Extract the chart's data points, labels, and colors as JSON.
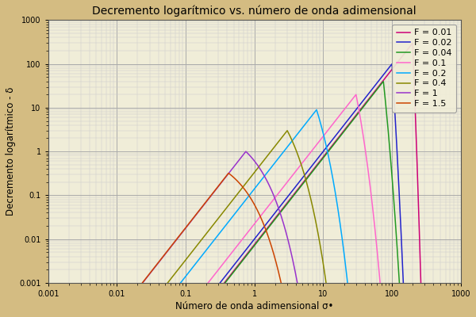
{
  "title": "Decremento logarítmico vs. número de onda adimensional",
  "xlabel": "Número de onda adimensional σ•",
  "ylabel": "Decremento logarítmico - δ",
  "xlim": [
    0.001,
    1000
  ],
  "ylim": [
    0.001,
    1000
  ],
  "background_outer": "#d4bc82",
  "background_inner": "#f0edd8",
  "grid_major_color": "#aaaaaa",
  "grid_minor_color": "#cccccc",
  "froude_numbers": [
    0.01,
    0.02,
    0.04,
    0.1,
    0.2,
    0.4,
    1.0,
    1.5
  ],
  "colors": [
    "#cc0077",
    "#2222cc",
    "#229922",
    "#ff66cc",
    "#00aaff",
    "#888800",
    "#9933cc",
    "#cc4400"
  ],
  "legend_labels": [
    "F = 0.01",
    "F = 0.02",
    "F = 0.04",
    "F = 0.1",
    "F = 0.2",
    "F = 0.4",
    "F = 1",
    "F = 1.5"
  ],
  "title_fontsize": 10,
  "label_fontsize": 8.5,
  "legend_fontsize": 8,
  "linewidth": 1.1
}
